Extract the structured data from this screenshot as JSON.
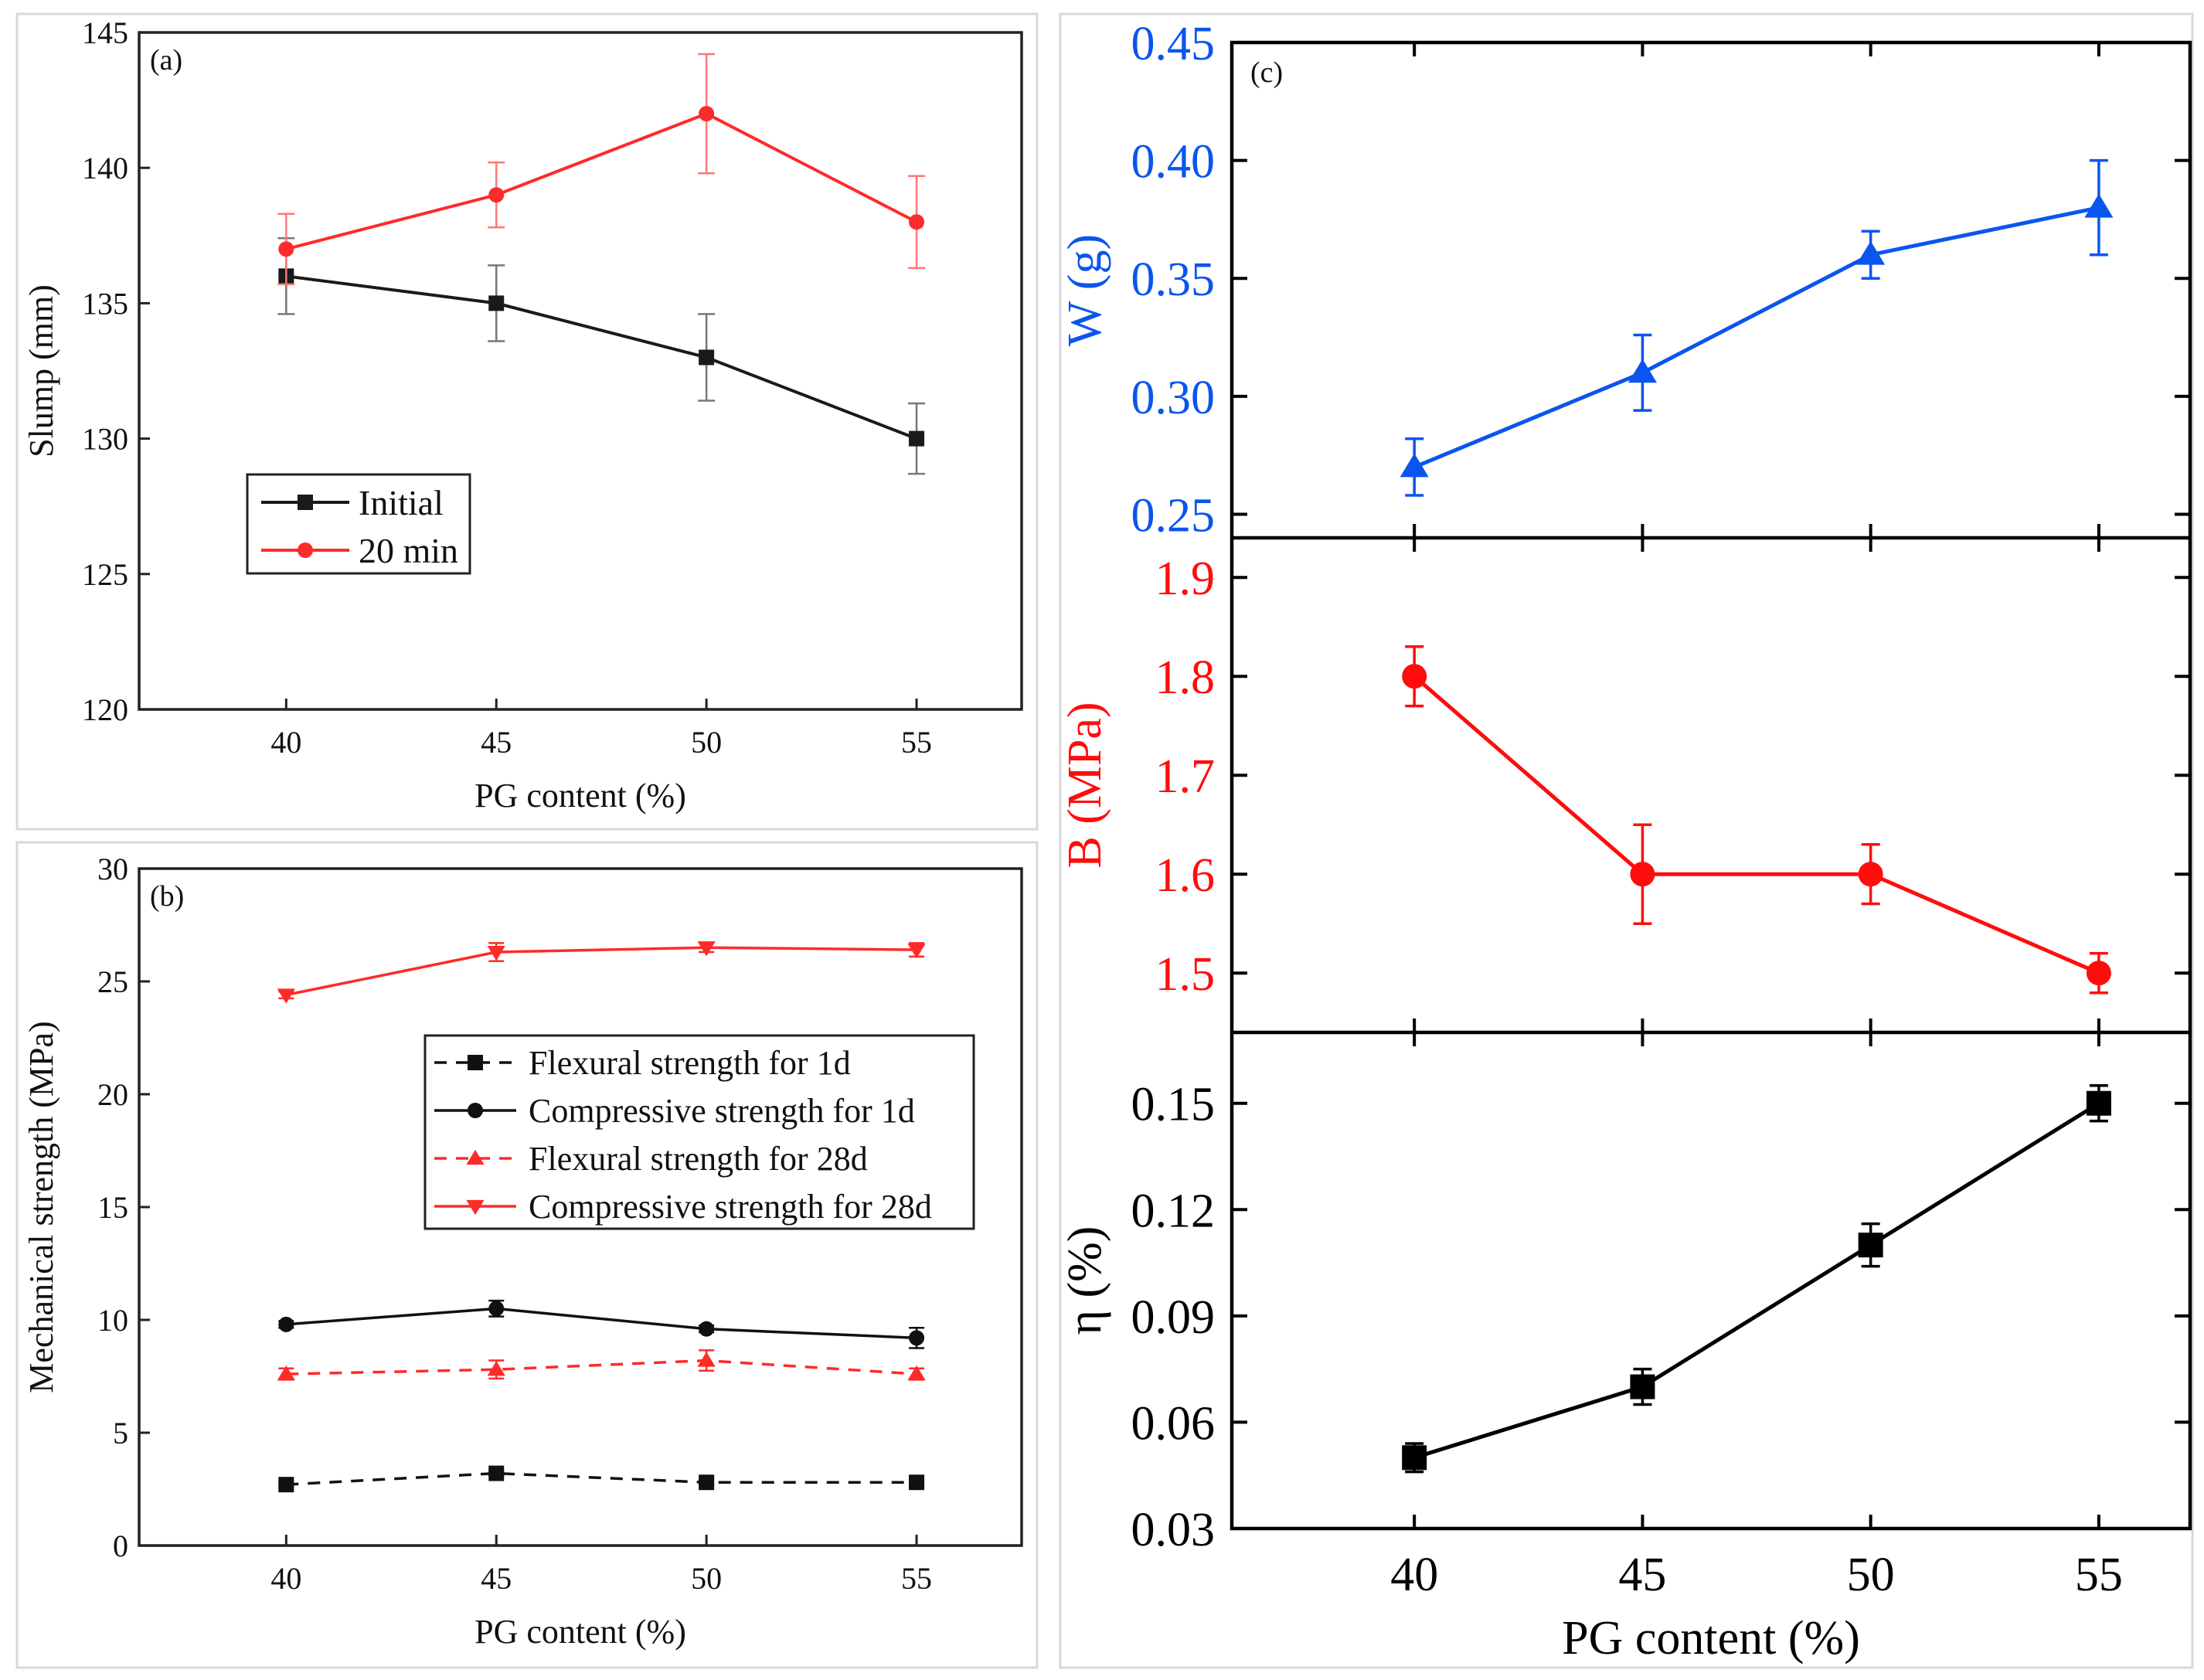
{
  "chart_data": [
    {
      "id": "a",
      "type": "line",
      "panel_label": "(a)",
      "xlabel": "PG content (%)",
      "ylabel": "Slump (mm)",
      "x": [
        40,
        45,
        50,
        55
      ],
      "x_ticks": [
        "40",
        "45",
        "50",
        "55"
      ],
      "xlim": [
        36.5,
        57.5
      ],
      "ylim": [
        120,
        145
      ],
      "y_ticks": [
        "120",
        "125",
        "130",
        "135",
        "140",
        "145"
      ],
      "legend_position": "center-left",
      "series": [
        {
          "name": "Initial",
          "color": "#1a1a1a",
          "marker": "square",
          "dash": "solid",
          "values": [
            136,
            135,
            133,
            130
          ],
          "errors": [
            1.4,
            1.4,
            1.6,
            1.3
          ]
        },
        {
          "name": "20 min",
          "color": "#ff2a2a",
          "marker": "circle",
          "dash": "solid",
          "values": [
            137,
            139,
            142,
            138
          ],
          "errors": [
            1.3,
            1.2,
            2.2,
            1.7
          ]
        }
      ]
    },
    {
      "id": "b",
      "type": "line",
      "panel_label": "(b)",
      "xlabel": "PG content (%)",
      "ylabel": "Mechanical strength (MPa)",
      "x": [
        40,
        45,
        50,
        55
      ],
      "x_ticks": [
        "40",
        "45",
        "50",
        "55"
      ],
      "xlim": [
        36.5,
        57.5
      ],
      "ylim": [
        0,
        30
      ],
      "y_ticks": [
        "0",
        "5",
        "10",
        "15",
        "20",
        "25",
        "30"
      ],
      "legend_position": "center-right",
      "series": [
        {
          "name": "Flexural strength for 1d",
          "color": "#111111",
          "marker": "square",
          "dash": "dashed",
          "values": [
            2.7,
            3.2,
            2.8,
            2.8
          ],
          "errors": [
            0.1,
            0.1,
            0.1,
            0.1
          ]
        },
        {
          "name": "Compressive strength for 1d",
          "color": "#111111",
          "marker": "circle",
          "dash": "solid",
          "values": [
            9.8,
            10.5,
            9.6,
            9.2
          ],
          "errors": [
            0.15,
            0.35,
            0.15,
            0.45
          ]
        },
        {
          "name": "Flexural strength for 28d",
          "color": "#ff2a2a",
          "marker": "triangle-up",
          "dash": "dashed",
          "values": [
            7.6,
            7.8,
            8.2,
            7.6
          ],
          "errors": [
            0.25,
            0.4,
            0.45,
            0.25
          ]
        },
        {
          "name": "Compressive strength for 28d",
          "color": "#ff2a2a",
          "marker": "triangle-down",
          "dash": "solid",
          "values": [
            24.4,
            26.3,
            26.5,
            26.4
          ],
          "errors": [
            0.15,
            0.4,
            0.2,
            0.3
          ]
        }
      ]
    },
    {
      "id": "c",
      "type": "line",
      "panel_label": "(c)",
      "xlabel": "PG content (%)",
      "x": [
        40,
        45,
        50,
        55
      ],
      "x_ticks": [
        "40",
        "45",
        "50",
        "55"
      ],
      "xlim": [
        36.0,
        57.0
      ],
      "subplots": [
        {
          "id": "c-top",
          "ylabel": "W (g)",
          "color": "#0a55ee",
          "marker": "triangle-up",
          "ylim": [
            0.24,
            0.45
          ],
          "y_ticks": [
            "0.25",
            "0.30",
            "0.35",
            "0.40",
            "0.45"
          ],
          "values": [
            0.27,
            0.31,
            0.36,
            0.38
          ],
          "errors": [
            0.012,
            0.016,
            0.01,
            0.02
          ]
        },
        {
          "id": "c-mid",
          "ylabel": "B (MPa)",
          "color": "#ff0d0d",
          "marker": "circle",
          "ylim": [
            1.44,
            1.94
          ],
          "y_ticks": [
            "1.5",
            "1.6",
            "1.7",
            "1.8",
            "1.9"
          ],
          "values": [
            1.8,
            1.6,
            1.6,
            1.5
          ],
          "errors": [
            0.03,
            0.05,
            0.03,
            0.02
          ]
        },
        {
          "id": "c-bot",
          "ylabel": "η (%)",
          "color": "#000000",
          "marker": "square",
          "ylim": [
            0.03,
            0.17
          ],
          "y_ticks": [
            "0.03",
            "0.06",
            "0.09",
            "0.12",
            "0.15"
          ],
          "values": [
            0.05,
            0.07,
            0.11,
            0.15
          ],
          "errors": [
            0.004,
            0.005,
            0.006,
            0.005
          ]
        }
      ]
    }
  ]
}
